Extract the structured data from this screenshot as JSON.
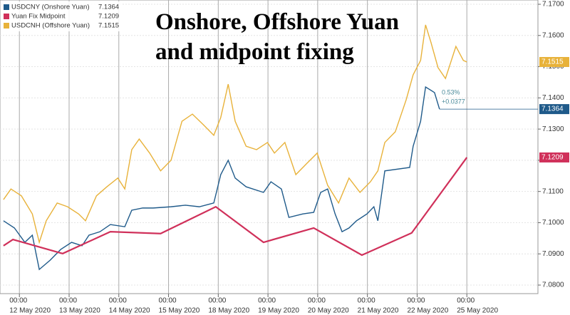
{
  "chart_data": {
    "type": "line",
    "title": "Onshore, Offshore Yuan and midpoint fixing",
    "annotations": [
      "0.53%",
      "+0.0377"
    ],
    "xlim": [
      -0.39,
      10.43
    ],
    "xticks": [
      {
        "value": 0,
        "time": "00:00",
        "label": "12 May 2020"
      },
      {
        "value": 1,
        "time": "00:00",
        "label": "13 May 2020"
      },
      {
        "value": 2,
        "time": "00:00",
        "label": "14 May 2020"
      },
      {
        "value": 3,
        "time": "00:00",
        "label": "15 May 2020"
      },
      {
        "value": 4,
        "time": "00:00",
        "label": "18 May 2020"
      },
      {
        "value": 5,
        "time": "00:00",
        "label": "19 May 2020"
      },
      {
        "value": 6,
        "time": "00:00",
        "label": "20 May 2020"
      },
      {
        "value": 7,
        "time": "00:00",
        "label": "21 May 2020"
      },
      {
        "value": 8,
        "time": "00:00",
        "label": "22 May 2020"
      },
      {
        "value": 9,
        "time": "00:00",
        "label": "25 May 2020"
      }
    ],
    "ylim": [
      7.08,
      7.17
    ],
    "yticks": [
      {
        "value": 7.08,
        "label": "7.0800"
      },
      {
        "value": 7.09,
        "label": "7.0900"
      },
      {
        "value": 7.1,
        "label": "7.1000"
      },
      {
        "value": 7.11,
        "label": "7.1100"
      },
      {
        "value": 7.12,
        "label": "7.1200"
      },
      {
        "value": 7.13,
        "label": "7.1300"
      },
      {
        "value": 7.14,
        "label": "7.1400"
      },
      {
        "value": 7.15,
        "label": "7.1500"
      },
      {
        "value": 7.16,
        "label": "7.1600"
      },
      {
        "value": 7.17,
        "label": "7.1700"
      }
    ],
    "grid": true,
    "legend": "top-left",
    "series": [
      {
        "name": "USDCNY (Onshore Yuan)",
        "color": "#1f5a8a",
        "x": [
          -0.32,
          -0.1,
          0.11,
          0.26,
          0.4,
          0.62,
          0.83,
          1.05,
          1.26,
          1.4,
          1.62,
          1.83,
          2.12,
          2.26,
          2.48,
          2.69,
          3.05,
          3.34,
          3.62,
          3.91,
          4.05,
          4.2,
          4.34,
          4.56,
          4.91,
          5.06,
          5.27,
          5.42,
          5.7,
          5.92,
          6.06,
          6.2,
          6.35,
          6.49,
          6.63,
          6.78,
          6.99,
          7.13,
          7.21,
          7.35,
          7.85,
          7.92,
          8.07,
          8.17,
          8.35,
          8.45
        ],
        "values": [
          7.1006,
          7.0983,
          7.0937,
          7.096,
          7.085,
          7.088,
          7.0914,
          7.0937,
          7.0926,
          7.096,
          7.0971,
          7.0994,
          7.0987,
          7.104,
          7.1047,
          7.1047,
          7.1051,
          7.1056,
          7.1051,
          7.1063,
          7.1154,
          7.12,
          7.1143,
          7.1115,
          7.1097,
          7.1131,
          7.1108,
          7.1017,
          7.1028,
          7.1033,
          7.1097,
          7.1108,
          7.1028,
          7.0971,
          7.0983,
          7.1006,
          7.1028,
          7.1051,
          7.1006,
          7.1166,
          7.1177,
          7.1245,
          7.1325,
          7.1435,
          7.1417,
          7.1364
        ]
      },
      {
        "name": "Yuan Fix Midpoint",
        "color": "#d0305a",
        "x": [
          -0.32,
          -0.13,
          0.87,
          1.83,
          2.84,
          3.95,
          4.91,
          5.92,
          6.89,
          7.89,
          9.0
        ],
        "values": [
          7.0926,
          7.0946,
          7.0901,
          7.0971,
          7.0965,
          7.1051,
          7.0937,
          7.0983,
          7.0896,
          7.0967,
          7.1209
        ]
      },
      {
        "name": "USDCNH (Offshore Yuan)",
        "color": "#e8b23a",
        "x": [
          -0.32,
          -0.17,
          0.04,
          0.26,
          0.4,
          0.54,
          0.76,
          0.97,
          1.19,
          1.33,
          1.55,
          1.76,
          1.98,
          2.12,
          2.26,
          2.41,
          2.62,
          2.84,
          3.05,
          3.27,
          3.48,
          3.7,
          3.91,
          4.05,
          4.2,
          4.34,
          4.56,
          4.77,
          4.99,
          5.13,
          5.34,
          5.56,
          5.77,
          5.99,
          6.2,
          6.42,
          6.63,
          6.85,
          7.06,
          7.21,
          7.35,
          7.56,
          7.78,
          7.92,
          8.07,
          8.17,
          8.28,
          8.42,
          8.57,
          8.78,
          8.93,
          9.0
        ],
        "values": [
          7.1074,
          7.1108,
          7.1086,
          7.1028,
          7.0937,
          7.1006,
          7.1063,
          7.1051,
          7.1028,
          7.1006,
          7.1086,
          7.1115,
          7.1143,
          7.1108,
          7.1234,
          7.1268,
          7.1223,
          7.1166,
          7.12,
          7.1325,
          7.1348,
          7.1314,
          7.128,
          7.1337,
          7.1444,
          7.1325,
          7.1245,
          7.1234,
          7.1257,
          7.1223,
          7.1257,
          7.1154,
          7.1188,
          7.1223,
          7.112,
          7.1063,
          7.1143,
          7.1097,
          7.1131,
          7.1166,
          7.1257,
          7.1291,
          7.1394,
          7.1474,
          7.152,
          7.1634,
          7.1577,
          7.1497,
          7.1462,
          7.1565,
          7.152,
          7.1515
        ]
      }
    ]
  }
}
